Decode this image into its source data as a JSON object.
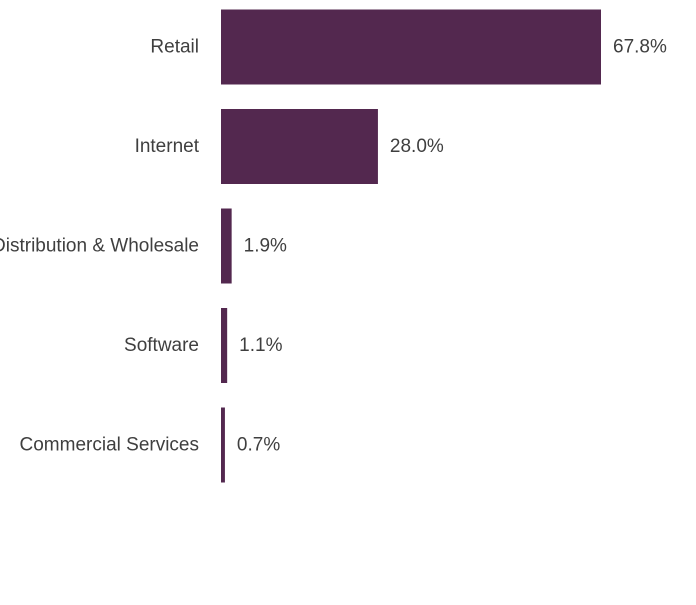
{
  "chart_data": {
    "type": "bar",
    "orientation": "horizontal",
    "categories": [
      "Retail",
      "Internet",
      "Distribution & Wholesale",
      "Software",
      "Commercial Services"
    ],
    "values": [
      67.8,
      28.0,
      1.9,
      1.1,
      0.7
    ],
    "value_labels": [
      "67.8%",
      "28.0%",
      "1.9%",
      "1.1%",
      "0.7%"
    ],
    "unit": "%",
    "xlim": [
      0,
      100
    ],
    "grid": false,
    "legend": "none",
    "bar_color": "#53284f"
  }
}
